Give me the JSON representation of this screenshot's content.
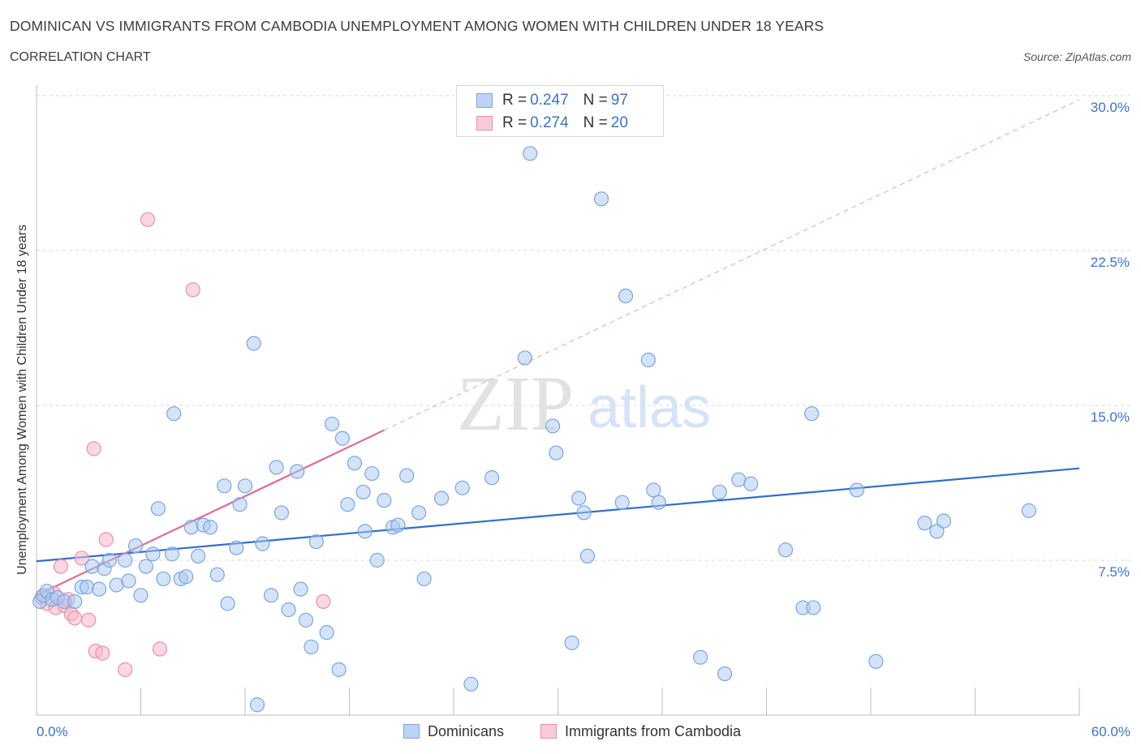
{
  "header": {
    "title": "DOMINICAN VS IMMIGRANTS FROM CAMBODIA UNEMPLOYMENT AMONG WOMEN WITH CHILDREN UNDER 18 YEARS",
    "subtitle": "CORRELATION CHART",
    "source": "Source: ZipAtlas.com"
  },
  "watermark": {
    "zip": "ZIP",
    "atlas": "atlas"
  },
  "legend": {
    "r_label": "R = ",
    "n_label": "N = ",
    "entries": [
      {
        "r": "0.247",
        "n": "97"
      },
      {
        "r": "0.274",
        "n": "20"
      }
    ]
  },
  "colors": {
    "blue_fill": "#a9c8f0",
    "blue_stroke": "#7aa6e0",
    "blue_line": "#2f6fcd",
    "pink_fill": "#f6b8ca",
    "pink_stroke": "#ec8fab",
    "pink_line": "#e06a95",
    "axis_text": "#3b74c9",
    "grid": "#d9d9d9"
  },
  "chart_data": {
    "type": "scatter",
    "title": "DOMINICAN VS IMMIGRANTS FROM CAMBODIA UNEMPLOYMENT AMONG WOMEN WITH CHILDREN UNDER 18 YEARS",
    "xlabel": "",
    "ylabel": "Unemployment Among Women with Children Under 18 years",
    "xlim": [
      0,
      60
    ],
    "ylim": [
      0,
      30
    ],
    "x_tick_labels": [
      "0.0%",
      "60.0%"
    ],
    "y_ticks": [
      7.5,
      15.0,
      22.5,
      30.0
    ],
    "y_tick_labels": [
      "7.5%",
      "15.0%",
      "22.5%",
      "30.0%"
    ],
    "grid": true,
    "legend_position": "top-center",
    "series": [
      {
        "name": "Dominicans",
        "color": "#a9c8f0",
        "points": [
          [
            0.2,
            5.5
          ],
          [
            0.4,
            5.8
          ],
          [
            0.6,
            6.0
          ],
          [
            0.9,
            5.6
          ],
          [
            1.2,
            5.7
          ],
          [
            1.6,
            5.5
          ],
          [
            2.2,
            5.5
          ],
          [
            2.6,
            6.2
          ],
          [
            2.9,
            6.2
          ],
          [
            3.2,
            7.2
          ],
          [
            3.6,
            6.1
          ],
          [
            3.9,
            7.1
          ],
          [
            4.2,
            7.5
          ],
          [
            4.6,
            6.3
          ],
          [
            5.1,
            7.5
          ],
          [
            5.3,
            6.5
          ],
          [
            5.7,
            8.2
          ],
          [
            6.0,
            5.8
          ],
          [
            6.3,
            7.2
          ],
          [
            6.7,
            7.8
          ],
          [
            7.0,
            10.0
          ],
          [
            7.3,
            6.6
          ],
          [
            7.8,
            7.8
          ],
          [
            7.9,
            14.6
          ],
          [
            8.3,
            6.6
          ],
          [
            8.6,
            6.7
          ],
          [
            8.9,
            9.1
          ],
          [
            9.3,
            7.7
          ],
          [
            9.6,
            9.2
          ],
          [
            10.0,
            9.1
          ],
          [
            10.4,
            6.8
          ],
          [
            10.8,
            11.1
          ],
          [
            11.0,
            5.4
          ],
          [
            11.5,
            8.1
          ],
          [
            11.7,
            10.2
          ],
          [
            12.0,
            11.1
          ],
          [
            12.5,
            18.0
          ],
          [
            12.7,
            0.5
          ],
          [
            13.0,
            8.3
          ],
          [
            13.5,
            5.8
          ],
          [
            13.8,
            12.0
          ],
          [
            14.1,
            9.8
          ],
          [
            14.5,
            5.1
          ],
          [
            15.0,
            11.8
          ],
          [
            15.2,
            6.1
          ],
          [
            15.5,
            4.6
          ],
          [
            15.8,
            3.3
          ],
          [
            16.1,
            8.4
          ],
          [
            16.7,
            4.0
          ],
          [
            17.0,
            14.1
          ],
          [
            17.4,
            2.2
          ],
          [
            17.6,
            13.4
          ],
          [
            17.9,
            10.2
          ],
          [
            18.3,
            12.2
          ],
          [
            18.8,
            10.8
          ],
          [
            18.9,
            8.9
          ],
          [
            19.3,
            11.7
          ],
          [
            19.6,
            7.5
          ],
          [
            20.0,
            10.4
          ],
          [
            20.5,
            9.1
          ],
          [
            20.8,
            9.2
          ],
          [
            21.3,
            11.6
          ],
          [
            22.0,
            9.8
          ],
          [
            22.3,
            6.6
          ],
          [
            23.3,
            10.5
          ],
          [
            24.5,
            11.0
          ],
          [
            25.0,
            1.5
          ],
          [
            26.2,
            11.5
          ],
          [
            28.1,
            17.3
          ],
          [
            28.4,
            27.2
          ],
          [
            29.7,
            14.0
          ],
          [
            29.9,
            12.7
          ],
          [
            30.8,
            3.5
          ],
          [
            31.2,
            10.5
          ],
          [
            31.5,
            9.8
          ],
          [
            31.7,
            7.7
          ],
          [
            32.5,
            25.0
          ],
          [
            33.7,
            10.3
          ],
          [
            33.9,
            20.3
          ],
          [
            35.2,
            17.2
          ],
          [
            35.5,
            10.9
          ],
          [
            35.8,
            10.3
          ],
          [
            38.2,
            2.8
          ],
          [
            39.3,
            10.8
          ],
          [
            39.6,
            2.0
          ],
          [
            40.4,
            11.4
          ],
          [
            41.1,
            11.2
          ],
          [
            43.1,
            8.0
          ],
          [
            44.1,
            5.2
          ],
          [
            44.6,
            14.6
          ],
          [
            44.7,
            5.2
          ],
          [
            47.2,
            10.9
          ],
          [
            48.3,
            2.6
          ],
          [
            51.1,
            9.3
          ],
          [
            51.8,
            8.9
          ],
          [
            52.2,
            9.4
          ],
          [
            57.1,
            9.9
          ]
        ]
      },
      {
        "name": "Immigrants from Cambodia",
        "color": "#f6b8ca",
        "points": [
          [
            0.3,
            5.7
          ],
          [
            0.6,
            5.4
          ],
          [
            1.0,
            5.9
          ],
          [
            1.1,
            5.2
          ],
          [
            1.4,
            7.2
          ],
          [
            1.6,
            5.3
          ],
          [
            1.8,
            5.6
          ],
          [
            2.0,
            4.9
          ],
          [
            2.2,
            4.7
          ],
          [
            2.6,
            7.6
          ],
          [
            3.0,
            4.6
          ],
          [
            3.3,
            12.9
          ],
          [
            3.4,
            3.1
          ],
          [
            3.8,
            3.0
          ],
          [
            4.0,
            8.5
          ],
          [
            5.1,
            2.2
          ],
          [
            6.4,
            24.0
          ],
          [
            7.1,
            3.2
          ],
          [
            9.0,
            20.6
          ],
          [
            16.5,
            5.5
          ]
        ]
      }
    ],
    "trendlines": [
      {
        "series": "Dominicans",
        "x": [
          0,
          60
        ],
        "y": [
          7.45,
          11.95
        ]
      },
      {
        "series": "Immigrants from Cambodia",
        "x": [
          0,
          20
        ],
        "y": [
          5.8,
          13.8
        ],
        "dashed_extension_to": [
          60,
          29.8
        ]
      }
    ]
  },
  "bottom_legend": {
    "items": [
      {
        "label": "Dominicans"
      },
      {
        "label": "Immigrants from Cambodia"
      }
    ]
  }
}
